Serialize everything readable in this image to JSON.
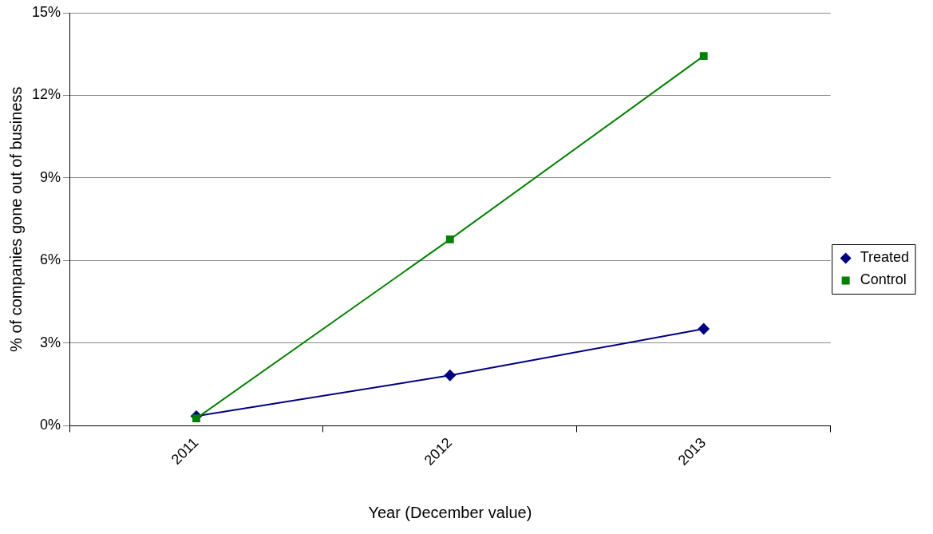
{
  "chart_data": {
    "type": "line",
    "xlabel": "Year (December value)",
    "ylabel": "% of companies gone out of business",
    "categories": [
      "2011",
      "2012",
      "2013"
    ],
    "series": [
      {
        "name": "Treated",
        "color": "#000080",
        "values": [
          0.35,
          1.83,
          3.52
        ],
        "marker": "diamond"
      },
      {
        "name": "Control",
        "color": "#008000",
        "values": [
          0.27,
          6.77,
          13.43
        ],
        "marker": "square"
      }
    ],
    "ylim": [
      0,
      15
    ],
    "yticks": [
      {
        "value": 0,
        "label": "0%"
      },
      {
        "value": 3,
        "label": "3%"
      },
      {
        "value": 6,
        "label": "6%"
      },
      {
        "value": 9,
        "label": "9%"
      },
      {
        "value": 12,
        "label": "12%"
      },
      {
        "value": 15,
        "label": "15%"
      }
    ],
    "grid": "y",
    "legend": "right",
    "line_style": "solid"
  }
}
